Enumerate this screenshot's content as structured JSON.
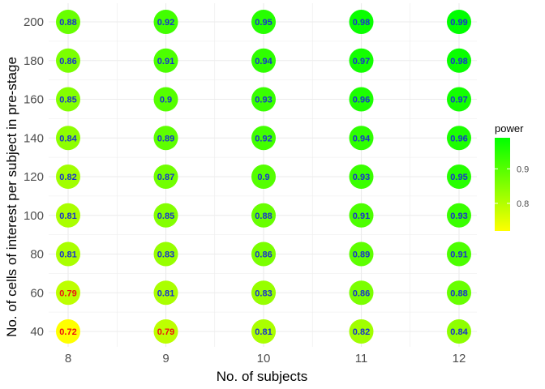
{
  "chart_data": {
    "type": "heatmap",
    "xlabel": "No. of subjects",
    "ylabel": "No. of cells of interest per subject in pre-stage",
    "x_categories": [
      "8",
      "9",
      "10",
      "11",
      "12"
    ],
    "y_categories": [
      "40",
      "60",
      "80",
      "100",
      "120",
      "140",
      "160",
      "180",
      "200"
    ],
    "values": [
      [
        0.72,
        0.79,
        0.81,
        0.82,
        0.84
      ],
      [
        0.79,
        0.81,
        0.83,
        0.86,
        0.88
      ],
      [
        0.81,
        0.83,
        0.86,
        0.89,
        0.91
      ],
      [
        0.81,
        0.85,
        0.88,
        0.91,
        0.93
      ],
      [
        0.82,
        0.87,
        0.9,
        0.93,
        0.95
      ],
      [
        0.84,
        0.89,
        0.92,
        0.94,
        0.96
      ],
      [
        0.85,
        0.9,
        0.93,
        0.96,
        0.97
      ],
      [
        0.86,
        0.91,
        0.94,
        0.97,
        0.98
      ],
      [
        0.88,
        0.92,
        0.95,
        0.98,
        0.99
      ]
    ],
    "label_threshold": 0.8,
    "label_color_low": "#ee1111",
    "label_color_high": "#1a33cc",
    "legend": {
      "title": "power",
      "placement": "right",
      "min": 0.72,
      "max": 0.99,
      "ticks": [
        0.8,
        0.9
      ],
      "tick_labels": [
        "0.8",
        "0.9"
      ],
      "color_low": "#ffff00",
      "color_high": "#00ff00"
    },
    "grid": true
  }
}
